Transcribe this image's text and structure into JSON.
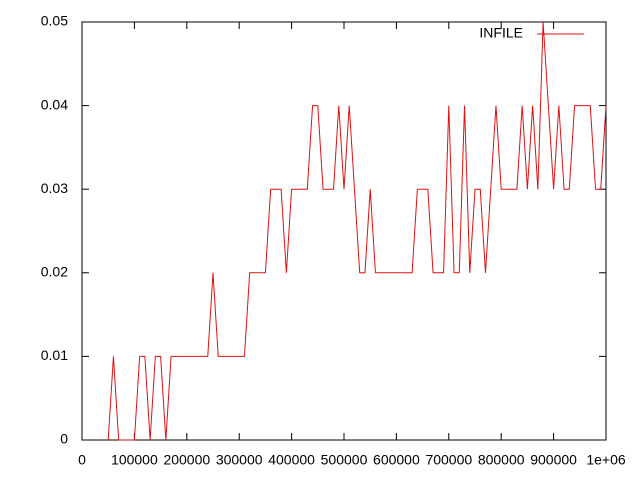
{
  "chart_data": {
    "type": "line",
    "legend": "top right",
    "series": [
      {
        "name": "INFILE",
        "color": "#dd1111",
        "x": [
          50000,
          60000,
          70000,
          100000,
          110000,
          120000,
          130000,
          140000,
          150000,
          160000,
          170000,
          240000,
          250000,
          260000,
          310000,
          320000,
          350000,
          360000,
          380000,
          390000,
          400000,
          430000,
          440000,
          450000,
          460000,
          480000,
          490000,
          500000,
          510000,
          530000,
          540000,
          550000,
          560000,
          630000,
          640000,
          660000,
          670000,
          690000,
          700000,
          710000,
          720000,
          730000,
          740000,
          750000,
          760000,
          770000,
          790000,
          800000,
          830000,
          840000,
          850000,
          860000,
          870000,
          880000,
          900000,
          910000,
          920000,
          930000,
          940000,
          970000,
          980000,
          990000,
          1000000
        ],
        "values": [
          0,
          0.01,
          0,
          0,
          0.01,
          0.01,
          0,
          0.01,
          0.01,
          0,
          0.01,
          0.01,
          0.02,
          0.01,
          0.01,
          0.02,
          0.02,
          0.03,
          0.03,
          0.02,
          0.03,
          0.03,
          0.04,
          0.04,
          0.03,
          0.03,
          0.04,
          0.03,
          0.04,
          0.02,
          0.02,
          0.03,
          0.02,
          0.02,
          0.03,
          0.03,
          0.02,
          0.02,
          0.04,
          0.02,
          0.02,
          0.04,
          0.02,
          0.03,
          0.03,
          0.02,
          0.04,
          0.03,
          0.03,
          0.04,
          0.03,
          0.04,
          0.03,
          0.05,
          0.03,
          0.04,
          0.03,
          0.03,
          0.04,
          0.04,
          0.03,
          0.03,
          0.04
        ]
      }
    ],
    "xlim": [
      0,
      1000000
    ],
    "xticks": [
      0,
      100000,
      200000,
      300000,
      400000,
      500000,
      600000,
      700000,
      800000,
      900000,
      {
        "value": 1000000,
        "label": "1e+06"
      }
    ],
    "ylim": [
      0,
      0.05
    ],
    "yticks": [
      0,
      0.01,
      0.02,
      0.03,
      0.04,
      0.05
    ]
  }
}
